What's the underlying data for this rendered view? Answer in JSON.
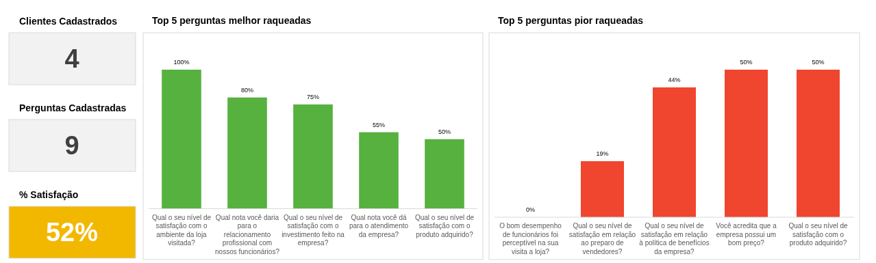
{
  "chart_data": [
    {
      "type": "other",
      "annotations": [
        "Clientes Cadastrados",
        "4",
        "Perguntas Cadastradas",
        "9",
        "% Satisfação",
        "52%"
      ],
      "colors": [
        "#f2f2f2",
        "#f2f2f2",
        "#f2b800"
      ]
    },
    {
      "type": "bar",
      "title": "Top 5 perguntas melhor raqueadas",
      "categories": [
        "Qual o seu nível de satisfação com o ambiente da loja visitada?",
        "Qual nota você daria para o relacionamento profissional com nossos funcionários?",
        "Qual o seu nível de satisfação com o investimento feito na empresa?",
        "Qual nota você dá para o atendimento da empresa?",
        "Qual o seu nível de satisfação com o produto adquirido?"
      ],
      "values": [
        100,
        80,
        75,
        55,
        50
      ],
      "value_labels": [
        "100%",
        "80%",
        "75%",
        "55%",
        "50%"
      ],
      "color": "#56b13f"
    },
    {
      "type": "bar",
      "title": "Top 5 perguntas pior raqueadas",
      "categories": [
        "O bom desempenho de funcionários foi perceptível na sua visita a loja?",
        "Qual o seu nível de satisfação em relação ao preparo de vendedores?",
        "Qual o seu nível de satisfação em relação à política de benefícios da empresa?",
        "Você acredita que a empresa possui um bom preço?",
        "Qual o seu nível de satisfação com o produto adquirido?"
      ],
      "values": [
        0,
        19,
        44,
        50,
        50
      ],
      "value_labels": [
        "0%",
        "19%",
        "44%",
        "50%",
        "50%"
      ],
      "color": "#f0452e"
    }
  ]
}
